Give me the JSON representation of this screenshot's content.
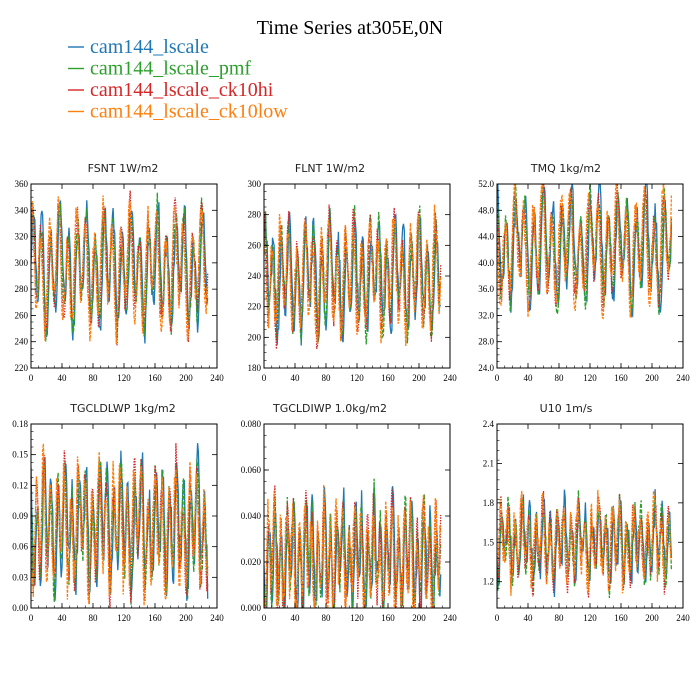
{
  "figure": {
    "title": "Time Series at305E,0N"
  },
  "legend": [
    {
      "name": "cam144_lscale",
      "color": "#1f77b4"
    },
    {
      "name": "cam144_lscale_pmf",
      "color": "#2ca02c"
    },
    {
      "name": "cam144_lscale_ck10hi",
      "color": "#d62728"
    },
    {
      "name": "cam144_lscale_ck10low",
      "color": "#ff7f0e"
    }
  ],
  "chart_data": [
    {
      "type": "line",
      "title": "FSNT   1W/m2",
      "xlim": [
        0,
        240
      ],
      "ylim": [
        220,
        360
      ],
      "xticks": [
        0,
        40,
        80,
        120,
        160,
        200,
        240
      ],
      "yticks": [
        220,
        240,
        260,
        280,
        300,
        320,
        340,
        360
      ],
      "ytick_labels": [
        "220",
        "240",
        "260",
        "280",
        "300",
        "320",
        "340",
        "360"
      ],
      "x_end": 228,
      "signal": {
        "mean": 296,
        "amplitude": 34,
        "period": 11.5,
        "noise": 10
      }
    },
    {
      "type": "line",
      "title": "FLNT   1W/m2",
      "xlim": [
        0,
        240
      ],
      "ylim": [
        180,
        300
      ],
      "xticks": [
        0,
        40,
        80,
        120,
        160,
        200,
        240
      ],
      "yticks": [
        180,
        200,
        220,
        240,
        260,
        280,
        300
      ],
      "ytick_labels": [
        "180",
        "200",
        "220",
        "240",
        "260",
        "280",
        "300"
      ],
      "x_end": 228,
      "signal": {
        "mean": 240,
        "amplitude": 28,
        "period": 10.5,
        "noise": 10
      }
    },
    {
      "type": "line",
      "title": "TMQ   1kg/m2",
      "xlim": [
        0,
        240
      ],
      "ylim": [
        24,
        52
      ],
      "xticks": [
        0,
        40,
        80,
        120,
        160,
        200,
        240
      ],
      "yticks": [
        24,
        28,
        32,
        36,
        40,
        44,
        48,
        52
      ],
      "ytick_labels": [
        "24.0",
        "28.0",
        "32.0",
        "36.0",
        "40.0",
        "44.0",
        "48.0",
        "52.0"
      ],
      "x_end": 225,
      "signal": {
        "mean": 42.5,
        "amplitude": 6.5,
        "period": 12,
        "noise": 2
      }
    },
    {
      "type": "line",
      "title": "TGCLDLWP   1kg/m2",
      "xlim": [
        0,
        240
      ],
      "ylim": [
        0,
        0.18
      ],
      "xticks": [
        0,
        40,
        80,
        120,
        160,
        200,
        240
      ],
      "yticks": [
        0,
        0.03,
        0.06,
        0.09,
        0.12,
        0.15,
        0.18
      ],
      "ytick_labels": [
        "0.00",
        "0.03",
        "0.06",
        "0.09",
        "0.12",
        "0.15",
        "0.18"
      ],
      "x_end": 228,
      "signal": {
        "mean": 0.08,
        "amplitude": 0.045,
        "period": 9,
        "noise": 0.018
      }
    },
    {
      "type": "line",
      "title": "TGCLDIWP   1.0kg/m2",
      "xlim": [
        0,
        240
      ],
      "ylim": [
        0,
        0.08
      ],
      "xticks": [
        0,
        40,
        80,
        120,
        160,
        200,
        240
      ],
      "yticks": [
        0,
        0.02,
        0.04,
        0.06,
        0.08
      ],
      "ytick_labels": [
        "0.000",
        "0.020",
        "0.040",
        "0.060",
        "0.080"
      ],
      "x_end": 228,
      "signal": {
        "mean": 0.022,
        "amplitude": 0.018,
        "period": 8,
        "noise": 0.009
      }
    },
    {
      "type": "line",
      "title": "U10   1m/s",
      "xlim": [
        0,
        240
      ],
      "ylim": [
        1.0,
        2.4
      ],
      "xticks": [
        0,
        40,
        80,
        120,
        160,
        200,
        240
      ],
      "yticks": [
        1.2,
        1.5,
        1.8,
        2.1,
        2.4
      ],
      "ytick_labels": [
        "1.2",
        "1.5",
        "1.8",
        "2.1",
        "2.4"
      ],
      "x_end": 225,
      "signal": {
        "mean": 1.5,
        "amplitude": 0.22,
        "period": 9,
        "noise": 0.12
      }
    }
  ]
}
